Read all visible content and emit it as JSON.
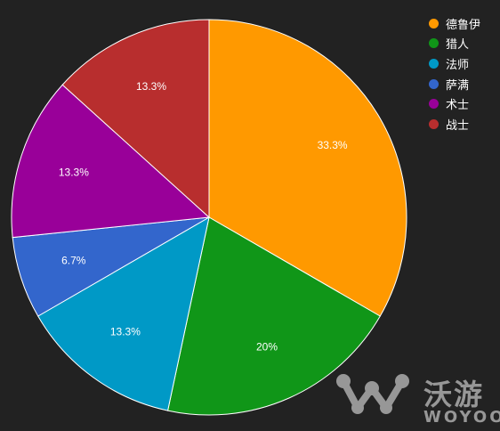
{
  "chart_data": {
    "type": "pie",
    "title": "",
    "series": [
      {
        "name": "德鲁伊",
        "value": 33.3,
        "label": "33.3%",
        "color": "#ff9900"
      },
      {
        "name": "猎人",
        "value": 20,
        "label": "20%",
        "color": "#109618"
      },
      {
        "name": "法师",
        "value": 13.3,
        "label": "13.3%",
        "color": "#0099c6"
      },
      {
        "name": "萨满",
        "value": 6.7,
        "label": "6.7%",
        "color": "#3366cc"
      },
      {
        "name": "术士",
        "value": 13.3,
        "label": "13.3%",
        "color": "#990099"
      },
      {
        "name": "战士",
        "value": 13.3,
        "label": "13.3%",
        "color": "#b82e2e"
      }
    ],
    "start_angle": "12 o'clock",
    "direction": "clockwise",
    "legend_placement": "top-right"
  },
  "watermark": {
    "text": "沃游",
    "subtext": "WOYOO",
    "logo_icon": "woyoo-logo-icon"
  },
  "background_color": "#222222"
}
